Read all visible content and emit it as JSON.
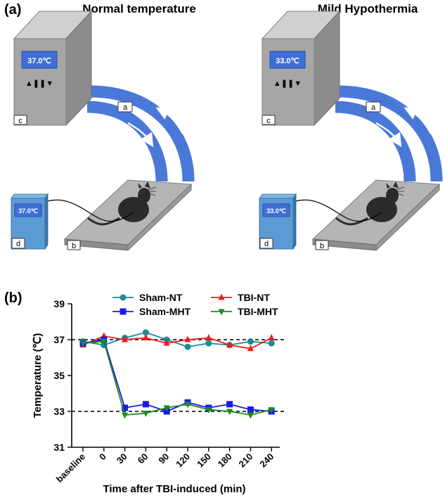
{
  "panel_a": {
    "label": "(a)",
    "left": {
      "title": "Normal temperature",
      "box_display": "37.0℃",
      "box_buttons": "▲❚❚▼",
      "small_display": "37.0℃",
      "tag_a": "a",
      "tag_b": "b",
      "tag_c": "c",
      "tag_d": "d"
    },
    "right": {
      "title": "Mild Hypothermia",
      "box_display": "33.0℃",
      "box_buttons": "▲❚❚▼",
      "small_display": "33.0℃",
      "tag_a": "a",
      "tag_b": "b",
      "tag_c": "c",
      "tag_d": "d"
    },
    "colors": {
      "box_gray": "#a6a6a6",
      "display_blue": "#3f6fd6",
      "tube_blue": "#4a78d8",
      "controller_blue": "#5b9bd5"
    }
  },
  "panel_b": {
    "label": "(b)"
  },
  "chart_data": {
    "type": "line",
    "xlabel": "Time after TBI-induced (min)",
    "ylabel": "Temperature (℃)",
    "categories": [
      "baseline",
      "0",
      "30",
      "60",
      "90",
      "120",
      "150",
      "180",
      "210",
      "240"
    ],
    "ylim": [
      31,
      39
    ],
    "yticks": [
      "31",
      "33",
      "35",
      "37",
      "39"
    ],
    "reference_lines": [
      37,
      33
    ],
    "legend_position": "top",
    "series": [
      {
        "name": "Sham-NT",
        "marker": "circle",
        "color": "#1b8a96",
        "values": [
          36.9,
          36.7,
          37.1,
          37.4,
          37.0,
          36.6,
          36.8,
          36.7,
          36.9,
          36.8
        ]
      },
      {
        "name": "TBI-NT",
        "marker": "triangle-up",
        "color": "#ee1c1c",
        "values": [
          36.7,
          37.2,
          37.0,
          37.1,
          36.8,
          37.0,
          37.1,
          36.7,
          36.5,
          37.1
        ]
      },
      {
        "name": "Sham-MHT",
        "marker": "square",
        "color": "#1a1ae6",
        "values": [
          36.8,
          37.0,
          33.2,
          33.4,
          33.0,
          33.5,
          33.2,
          33.4,
          33.1,
          33.0
        ]
      },
      {
        "name": "TBI-MHT",
        "marker": "triangle-down",
        "color": "#1e8a1e",
        "values": [
          36.8,
          36.9,
          32.8,
          32.9,
          33.2,
          33.4,
          33.1,
          33.0,
          32.8,
          33.1
        ]
      }
    ]
  }
}
